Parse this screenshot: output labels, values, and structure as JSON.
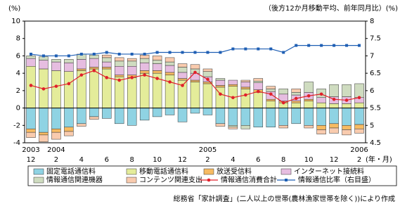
{
  "chart_data": {
    "type": "bar",
    "left_unit": "(%)",
    "right_unit": "（後方12か月移動平均、前年同月比）(%)",
    "x_unit": "(年・月)",
    "source": "総務省「家計調査」(二人以上の世帯(農林漁家世帯を除く))により作成",
    "categories": [
      "12",
      null,
      "2",
      null,
      "4",
      null,
      "6",
      null,
      "8",
      null,
      "10",
      null,
      "12",
      null,
      "2",
      null,
      "4",
      null,
      "6",
      null,
      "8",
      null,
      "10",
      null,
      "12",
      null,
      "2"
    ],
    "years": [
      "2003",
      null,
      "2004",
      null,
      null,
      null,
      null,
      null,
      null,
      null,
      null,
      null,
      null,
      null,
      "2005",
      null,
      null,
      null,
      null,
      null,
      null,
      null,
      null,
      null,
      null,
      null,
      "2006"
    ],
    "ylim": [
      -4,
      10
    ],
    "yticks": [
      -4,
      -2,
      0,
      2,
      4,
      6,
      8,
      10
    ],
    "y2lim": [
      4.5,
      8
    ],
    "y2ticks": [
      4.5,
      5,
      5.5,
      6,
      6.5,
      7,
      7.5,
      8
    ],
    "grid": false,
    "series": [
      {
        "name": "固定電話通信料",
        "color": "#8fd3e3",
        "kind": "bar",
        "values": [
          -2.4,
          -2.8,
          -2.4,
          -2.2,
          -1.8,
          -1.0,
          -1.2,
          -1.8,
          -2.0,
          -1.4,
          -1.0,
          -0.8,
          -1.6,
          -0.6,
          -0.8,
          -1.8,
          -2.0,
          -2.0,
          -2.2,
          -2.2,
          -2.0,
          -1.8,
          -2.0,
          -2.0,
          -1.8,
          -2.0,
          -1.9
        ]
      },
      {
        "name": "移動電話通信料",
        "color": "#e4ec9a",
        "kind": "bar",
        "values": [
          4.8,
          4.5,
          4.3,
          4.2,
          4.3,
          4.5,
          4.5,
          3.6,
          3.5,
          4.0,
          4.0,
          3.8,
          3.2,
          3.0,
          2.8,
          2.4,
          2.5,
          2.2,
          1.8,
          0.8,
          0.6,
          0.6,
          0.8,
          0.6,
          0.5,
          0.5,
          0.6
        ]
      },
      {
        "name": "放送受信料",
        "color": "#f7bb62",
        "kind": "bar",
        "values": [
          -0.4,
          -0.3,
          -0.4,
          -0.5,
          0.2,
          0.2,
          0.2,
          0.2,
          0.3,
          0.3,
          0.3,
          0.3,
          0.2,
          0.2,
          0.2,
          0.2,
          0.2,
          0.2,
          0.3,
          0.2,
          0.2,
          0.2,
          0.2,
          -0.5,
          -0.5,
          -0.5,
          -0.5
        ]
      },
      {
        "name": "インターネット接続料",
        "color": "#e6bde0",
        "kind": "bar",
        "values": [
          0.9,
          1.0,
          1.0,
          1.0,
          1.1,
          1.0,
          0.6,
          1.0,
          1.0,
          0.9,
          0.8,
          0.8,
          0.7,
          0.8,
          0.6,
          0.6,
          0.5,
          0.6,
          0.8,
          0.9,
          0.8,
          0.7,
          0.8,
          0.6,
          0.8,
          0.8,
          0.6
        ]
      },
      {
        "name": "情報通信関連機器",
        "color": "#cfdcc0",
        "kind": "bar",
        "values": [
          0.3,
          0.4,
          0.3,
          0.4,
          0.6,
          0.4,
          0.5,
          0.6,
          0.6,
          0.5,
          0.4,
          0.4,
          0.6,
          0.5,
          0.6,
          0.2,
          -0.2,
          -0.4,
          0.2,
          0.3,
          0.6,
          0.3,
          1.2,
          1.0,
          1.4,
          1.4,
          1.6
        ]
      },
      {
        "name": "コンテンツ関連支出",
        "color": "#f9cbae",
        "kind": "bar",
        "values": [
          -0.6,
          -0.8,
          -0.8,
          -0.5,
          -0.3,
          -0.3,
          0.3,
          0.4,
          0.3,
          0.4,
          0.5,
          0.5,
          0.4,
          0.5,
          0.3,
          -0.3,
          -0.2,
          0.2,
          0.3,
          0.3,
          -0.3,
          0.4,
          -0.3,
          -0.5,
          -0.6,
          -0.6,
          -0.5
        ]
      },
      {
        "name": "情報通信消費合計",
        "color": "#e0202a",
        "kind": "line",
        "marker": "circle",
        "values": [
          2.6,
          2.2,
          2.5,
          2.8,
          3.8,
          4.3,
          3.5,
          3.2,
          3.5,
          3.8,
          3.4,
          3.0,
          2.6,
          4.1,
          3.3,
          1.6,
          1.2,
          1.5,
          1.9,
          1.6,
          0.6,
          1.1,
          1.4,
          1.6,
          1.0,
          0.9,
          1.2
        ]
      },
      {
        "name": "情報通信比率（右目盛）",
        "color": "#1f5fb4",
        "kind": "line",
        "marker": "square",
        "axis": "y2",
        "values": [
          7.05,
          7.0,
          7.0,
          7.0,
          7.05,
          7.05,
          7.1,
          7.05,
          7.05,
          7.05,
          7.1,
          7.1,
          7.1,
          7.1,
          7.1,
          7.1,
          7.2,
          7.2,
          7.2,
          7.2,
          7.1,
          7.3,
          7.3,
          7.3,
          7.3,
          7.3,
          7.3
        ]
      }
    ]
  }
}
